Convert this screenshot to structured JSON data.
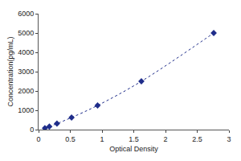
{
  "chart_data": {
    "type": "scatter",
    "x_label": "Optical Density",
    "y_label": "Concentration(pg/mL)",
    "x": [
      0.1,
      0.17,
      0.29,
      0.52,
      0.93,
      1.62,
      2.76
    ],
    "values": [
      78,
      156,
      312,
      625,
      1250,
      2500,
      5000
    ],
    "color": "#1f2d8a",
    "marker": "diamond",
    "line_style": "dotted",
    "xlim": [
      0,
      3
    ],
    "xticks": [
      0,
      0.5,
      1,
      1.5,
      2,
      2.5,
      3
    ],
    "ylim": [
      0,
      6000
    ],
    "yticks": [
      0,
      1000,
      2000,
      3000,
      4000,
      5000,
      6000
    ],
    "grid": false
  }
}
